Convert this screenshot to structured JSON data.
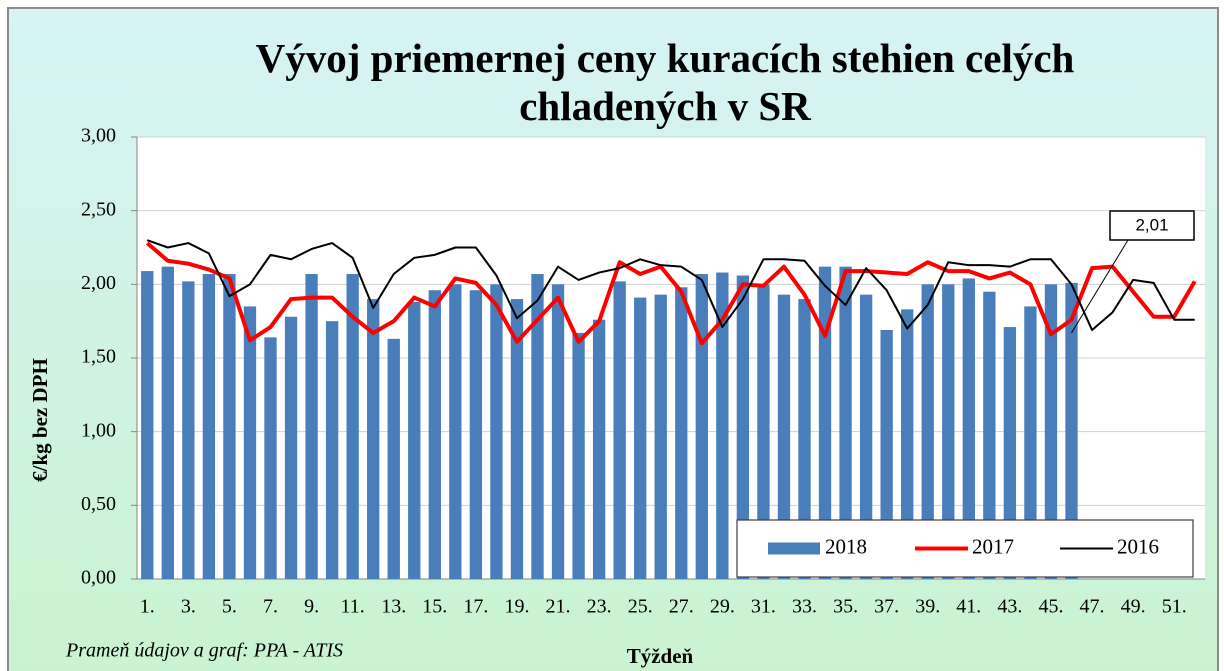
{
  "chart_data": {
    "type": "bar_line",
    "title": "Vývoj priemernej ceny kuracích stehien celých chladených v SR",
    "y_label": "€/kg bez DPH",
    "x_label": "Týždeň",
    "source": "Prameň údajov a graf: PPA - ATIS",
    "annotation": "2,01",
    "categories": [
      "1.",
      null,
      "3.",
      null,
      "5.",
      null,
      "7.",
      null,
      "9.",
      null,
      "11.",
      null,
      "13.",
      null,
      "15.",
      null,
      "17.",
      null,
      "19.",
      null,
      "21.",
      null,
      "23.",
      null,
      "25.",
      null,
      "27.",
      null,
      "29.",
      null,
      "31.",
      null,
      "33.",
      null,
      "35.",
      null,
      "37.",
      null,
      "39.",
      null,
      "41.",
      null,
      "43.",
      null,
      "45.",
      null,
      "47.",
      null,
      "49.",
      null,
      "51.",
      null
    ],
    "series": [
      {
        "name": "2018",
        "kind": "bar",
        "color": "#4a7ebb",
        "values": [
          2.09,
          2.12,
          2.02,
          2.07,
          2.07,
          1.85,
          1.64,
          1.78,
          2.07,
          1.75,
          2.07,
          1.9,
          1.63,
          1.88,
          1.96,
          2.0,
          1.96,
          2.0,
          1.9,
          2.07,
          2.0,
          1.67,
          1.76,
          2.02,
          1.91,
          1.93,
          1.98,
          2.07,
          2.08,
          2.06,
          2.0,
          1.93,
          1.9,
          2.12,
          2.12,
          1.93,
          1.69,
          1.83,
          2.0,
          2.0,
          2.04,
          1.95,
          1.71,
          1.85,
          2.0,
          2.01,
          null,
          null,
          null,
          null,
          null,
          null
        ]
      },
      {
        "name": "2017",
        "kind": "line",
        "color": "#ff0000",
        "width": 4,
        "values": [
          2.28,
          2.16,
          2.14,
          2.1,
          2.04,
          1.62,
          1.71,
          1.9,
          1.91,
          1.91,
          1.78,
          1.67,
          1.75,
          1.91,
          1.85,
          2.04,
          2.01,
          1.86,
          1.61,
          1.76,
          1.91,
          1.61,
          1.75,
          2.15,
          2.07,
          2.12,
          1.95,
          1.6,
          1.76,
          2.0,
          1.99,
          2.12,
          1.93,
          1.65,
          2.09,
          2.09,
          2.08,
          2.07,
          2.15,
          2.09,
          2.09,
          2.04,
          2.08,
          2.0,
          1.66,
          1.76,
          2.11,
          2.12,
          1.95,
          1.78,
          1.78,
          2.02
        ]
      },
      {
        "name": "2016",
        "kind": "line",
        "color": "#000000",
        "width": 2,
        "values": [
          2.3,
          2.25,
          2.28,
          2.21,
          1.92,
          2.0,
          2.2,
          2.17,
          2.24,
          2.28,
          2.18,
          1.84,
          2.07,
          2.18,
          2.2,
          2.25,
          2.25,
          2.06,
          1.77,
          1.89,
          2.12,
          2.03,
          2.08,
          2.11,
          2.17,
          2.13,
          2.12,
          2.03,
          1.71,
          1.9,
          2.17,
          2.17,
          2.16,
          1.99,
          1.86,
          2.11,
          1.96,
          1.7,
          1.86,
          2.15,
          2.13,
          2.13,
          2.12,
          2.17,
          2.17,
          2.0,
          1.69,
          1.81,
          2.03,
          2.01,
          1.76,
          1.76
        ]
      }
    ],
    "ylim": [
      0,
      3
    ],
    "yticks": [
      {
        "value": 0,
        "label": "0,00"
      },
      {
        "value": 0.5,
        "label": "0,50"
      },
      {
        "value": 1,
        "label": "1,00"
      },
      {
        "value": 1.5,
        "label": "1,50"
      },
      {
        "value": 2,
        "label": "2,00"
      },
      {
        "value": 2.5,
        "label": "2,50"
      },
      {
        "value": 3,
        "label": "3,00"
      }
    ],
    "grid": true,
    "legend": "lower right"
  }
}
